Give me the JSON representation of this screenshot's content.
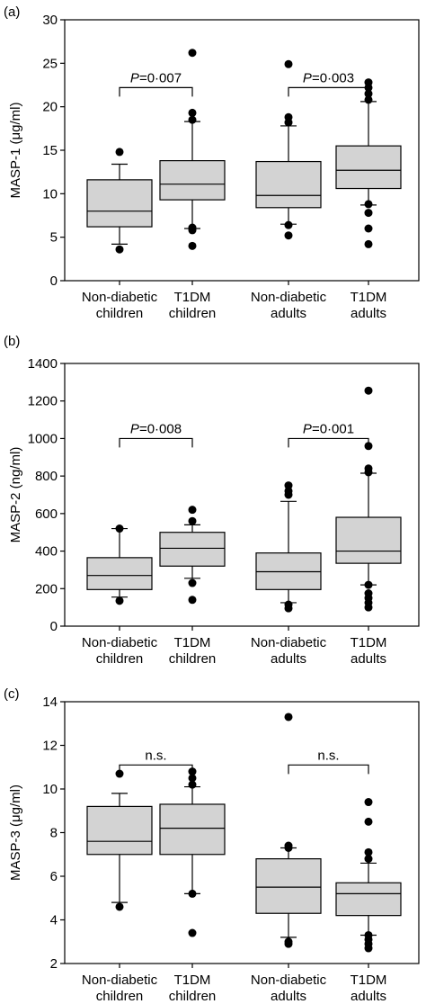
{
  "chart_data": [
    {
      "type": "box",
      "panel_tag": "(a)",
      "ylabel": "MASP-1 (μg/ml)",
      "ylim": [
        0,
        30
      ],
      "yticks": [
        0,
        5,
        10,
        15,
        20,
        25,
        30
      ],
      "categories": [
        {
          "line1": "Non-diabetic",
          "line2": "children"
        },
        {
          "line1": "T1DM",
          "line2": "children"
        },
        {
          "line1": "Non-diabetic",
          "line2": "adults"
        },
        {
          "line1": "T1DM",
          "line2": "adults"
        }
      ],
      "boxes": [
        {
          "q1": 6.2,
          "median": 8.0,
          "q3": 11.6,
          "whisker_low": 4.2,
          "whisker_high": 13.4,
          "outliers": [
            3.6,
            14.8
          ]
        },
        {
          "q1": 9.3,
          "median": 11.1,
          "q3": 13.8,
          "whisker_low": 6.0,
          "whisker_high": 18.3,
          "outliers": [
            4.0,
            5.8,
            6.1,
            18.5,
            19.3,
            26.2
          ]
        },
        {
          "q1": 8.4,
          "median": 9.8,
          "q3": 13.7,
          "whisker_low": 6.5,
          "whisker_high": 17.8,
          "outliers": [
            5.2,
            6.4,
            18.2,
            18.8,
            24.9
          ]
        },
        {
          "q1": 10.6,
          "median": 12.7,
          "q3": 15.5,
          "whisker_low": 8.7,
          "whisker_high": 20.6,
          "outliers": [
            4.2,
            6.0,
            7.8,
            8.8,
            20.8,
            21.5,
            22.2,
            22.8
          ]
        }
      ],
      "brackets": [
        {
          "from": 0,
          "to": 1,
          "label_prefix": "P",
          "label_value": "=0·007",
          "y": 22.2
        },
        {
          "from": 2,
          "to": 3,
          "label_prefix": "P",
          "label_value": "=0·003",
          "y": 22.2
        }
      ]
    },
    {
      "type": "box",
      "panel_tag": "(b)",
      "ylabel": "MASP-2 (ng/ml)",
      "ylim": [
        0,
        1400
      ],
      "yticks": [
        0,
        200,
        400,
        600,
        800,
        1000,
        1200,
        1400
      ],
      "categories": [
        {
          "line1": "Non-diabetic",
          "line2": "children"
        },
        {
          "line1": "T1DM",
          "line2": "children"
        },
        {
          "line1": "Non-diabetic",
          "line2": "adults"
        },
        {
          "line1": "T1DM",
          "line2": "adults"
        }
      ],
      "boxes": [
        {
          "q1": 195,
          "median": 270,
          "q3": 365,
          "whisker_low": 155,
          "whisker_high": 520,
          "outliers": [
            135,
            520
          ]
        },
        {
          "q1": 320,
          "median": 415,
          "q3": 500,
          "whisker_low": 255,
          "whisker_high": 540,
          "outliers": [
            140,
            230,
            560,
            620
          ]
        },
        {
          "q1": 195,
          "median": 290,
          "q3": 390,
          "whisker_low": 125,
          "whisker_high": 665,
          "outliers": [
            95,
            115,
            700,
            720,
            750
          ]
        },
        {
          "q1": 335,
          "median": 400,
          "q3": 580,
          "whisker_low": 220,
          "whisker_high": 815,
          "outliers": [
            100,
            125,
            150,
            175,
            220,
            820,
            840,
            960,
            1255
          ]
        }
      ],
      "brackets": [
        {
          "from": 0,
          "to": 1,
          "label_prefix": "P",
          "label_value": "=0·008",
          "y": 1000
        },
        {
          "from": 2,
          "to": 3,
          "label_prefix": "P",
          "label_value": "=0·001",
          "y": 1000
        }
      ]
    },
    {
      "type": "box",
      "panel_tag": "(c)",
      "ylabel": "MASP-3 (μg/ml)",
      "ylim": [
        2,
        14
      ],
      "yticks": [
        2,
        4,
        6,
        8,
        10,
        12,
        14
      ],
      "categories": [
        {
          "line1": "Non-diabetic",
          "line2": "children"
        },
        {
          "line1": "T1DM",
          "line2": "children"
        },
        {
          "line1": "Non-diabetic",
          "line2": "adults"
        },
        {
          "line1": "T1DM",
          "line2": "adults"
        }
      ],
      "boxes": [
        {
          "q1": 7.0,
          "median": 7.6,
          "q3": 9.2,
          "whisker_low": 4.8,
          "whisker_high": 9.8,
          "outliers": [
            4.6,
            10.7
          ]
        },
        {
          "q1": 7.0,
          "median": 8.2,
          "q3": 9.3,
          "whisker_low": 5.2,
          "whisker_high": 10.1,
          "outliers": [
            3.4,
            5.2,
            10.2,
            10.5,
            10.8
          ]
        },
        {
          "q1": 4.3,
          "median": 5.5,
          "q3": 6.8,
          "whisker_low": 3.2,
          "whisker_high": 7.3,
          "outliers": [
            2.9,
            3.0,
            7.3,
            7.4,
            13.3
          ]
        },
        {
          "q1": 4.2,
          "median": 5.2,
          "q3": 5.7,
          "whisker_low": 3.3,
          "whisker_high": 6.6,
          "outliers": [
            2.7,
            2.9,
            3.1,
            3.3,
            6.8,
            7.1,
            8.5,
            9.4
          ]
        }
      ],
      "brackets": [
        {
          "from": 0,
          "to": 1,
          "label_prefix": "",
          "label_value": "n.s.",
          "y": 11.1
        },
        {
          "from": 2,
          "to": 3,
          "label_prefix": "",
          "label_value": "n.s.",
          "y": 11.1
        }
      ]
    }
  ]
}
